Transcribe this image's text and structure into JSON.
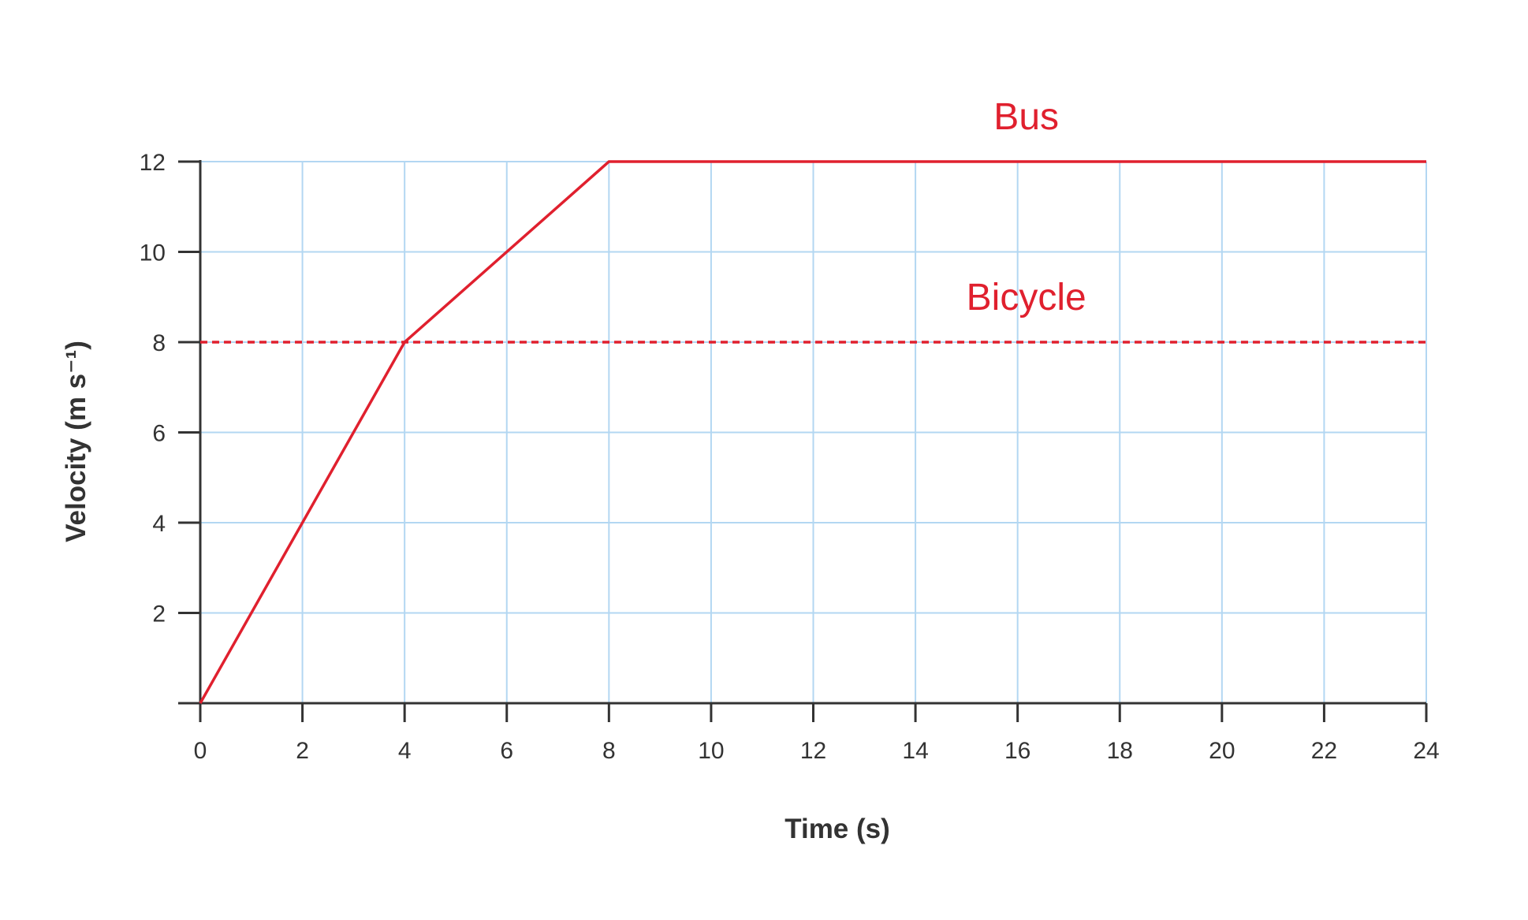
{
  "chart_data": {
    "type": "line",
    "title": "",
    "xlabel": "Time (s)",
    "ylabel": "Velocity (m s⁻¹)",
    "xlim": [
      0,
      24
    ],
    "ylim": [
      0,
      12
    ],
    "x_ticks": [
      0,
      2,
      4,
      6,
      8,
      10,
      12,
      14,
      16,
      18,
      20,
      22,
      24
    ],
    "y_ticks": [
      2,
      4,
      6,
      8,
      10,
      12
    ],
    "grid": true,
    "legend": "inline labels",
    "colors": {
      "grid": "#b3d7f2",
      "axis": "#333333",
      "series": "#e0202e"
    },
    "series": [
      {
        "name": "Bus",
        "style": "solid",
        "points": [
          [
            0,
            0
          ],
          [
            4,
            8
          ],
          [
            8,
            12
          ],
          [
            24,
            12
          ]
        ],
        "label_pos": [
          16,
          13
        ]
      },
      {
        "name": "Bicycle",
        "style": "dashed",
        "points": [
          [
            0,
            8
          ],
          [
            24,
            8
          ]
        ],
        "label_pos": [
          16,
          9
        ]
      }
    ]
  }
}
